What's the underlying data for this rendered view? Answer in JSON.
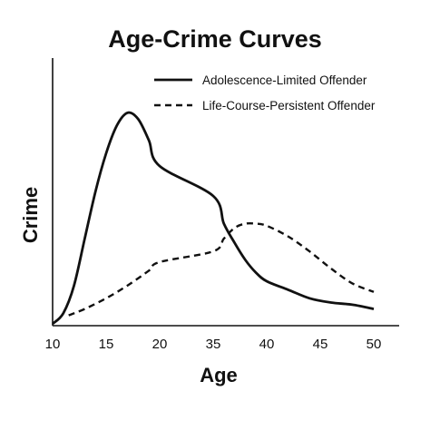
{
  "chart_data": {
    "type": "line",
    "title": "Age-Crime Curves",
    "xlabel": "Age",
    "ylabel": "Crime",
    "x_ticks": [
      "10",
      "15",
      "20",
      "35",
      "40",
      "45",
      "50"
    ],
    "grid": false,
    "legend_position": "top-right",
    "series": [
      {
        "name": "Adolescence-Limited Offender",
        "style": "solid",
        "color": "#111111",
        "points": [
          [
            10,
            0.0
          ],
          [
            11,
            0.05
          ],
          [
            12,
            0.18
          ],
          [
            13,
            0.4
          ],
          [
            14,
            0.62
          ],
          [
            15,
            0.8
          ],
          [
            16,
            0.93
          ],
          [
            17,
            0.99
          ],
          [
            18,
            0.96
          ],
          [
            19,
            0.86
          ],
          [
            20,
            0.74
          ],
          [
            35,
            0.6
          ],
          [
            36,
            0.47
          ],
          [
            37,
            0.38
          ],
          [
            38,
            0.3
          ],
          [
            39,
            0.24
          ],
          [
            40,
            0.2
          ],
          [
            42,
            0.16
          ],
          [
            44,
            0.12
          ],
          [
            46,
            0.1
          ],
          [
            48,
            0.09
          ],
          [
            50,
            0.07
          ]
        ]
      },
      {
        "name": "Life-Course-Persistent Offender",
        "style": "dashed",
        "color": "#111111",
        "points": [
          [
            11.5,
            0.04
          ],
          [
            13,
            0.07
          ],
          [
            15,
            0.12
          ],
          [
            17,
            0.18
          ],
          [
            19,
            0.25
          ],
          [
            20,
            0.29
          ],
          [
            35,
            0.34
          ],
          [
            36,
            0.4
          ],
          [
            37,
            0.45
          ],
          [
            38,
            0.47
          ],
          [
            39,
            0.47
          ],
          [
            40,
            0.46
          ],
          [
            42,
            0.41
          ],
          [
            44,
            0.34
          ],
          [
            46,
            0.26
          ],
          [
            48,
            0.19
          ],
          [
            50,
            0.15
          ]
        ]
      }
    ]
  }
}
